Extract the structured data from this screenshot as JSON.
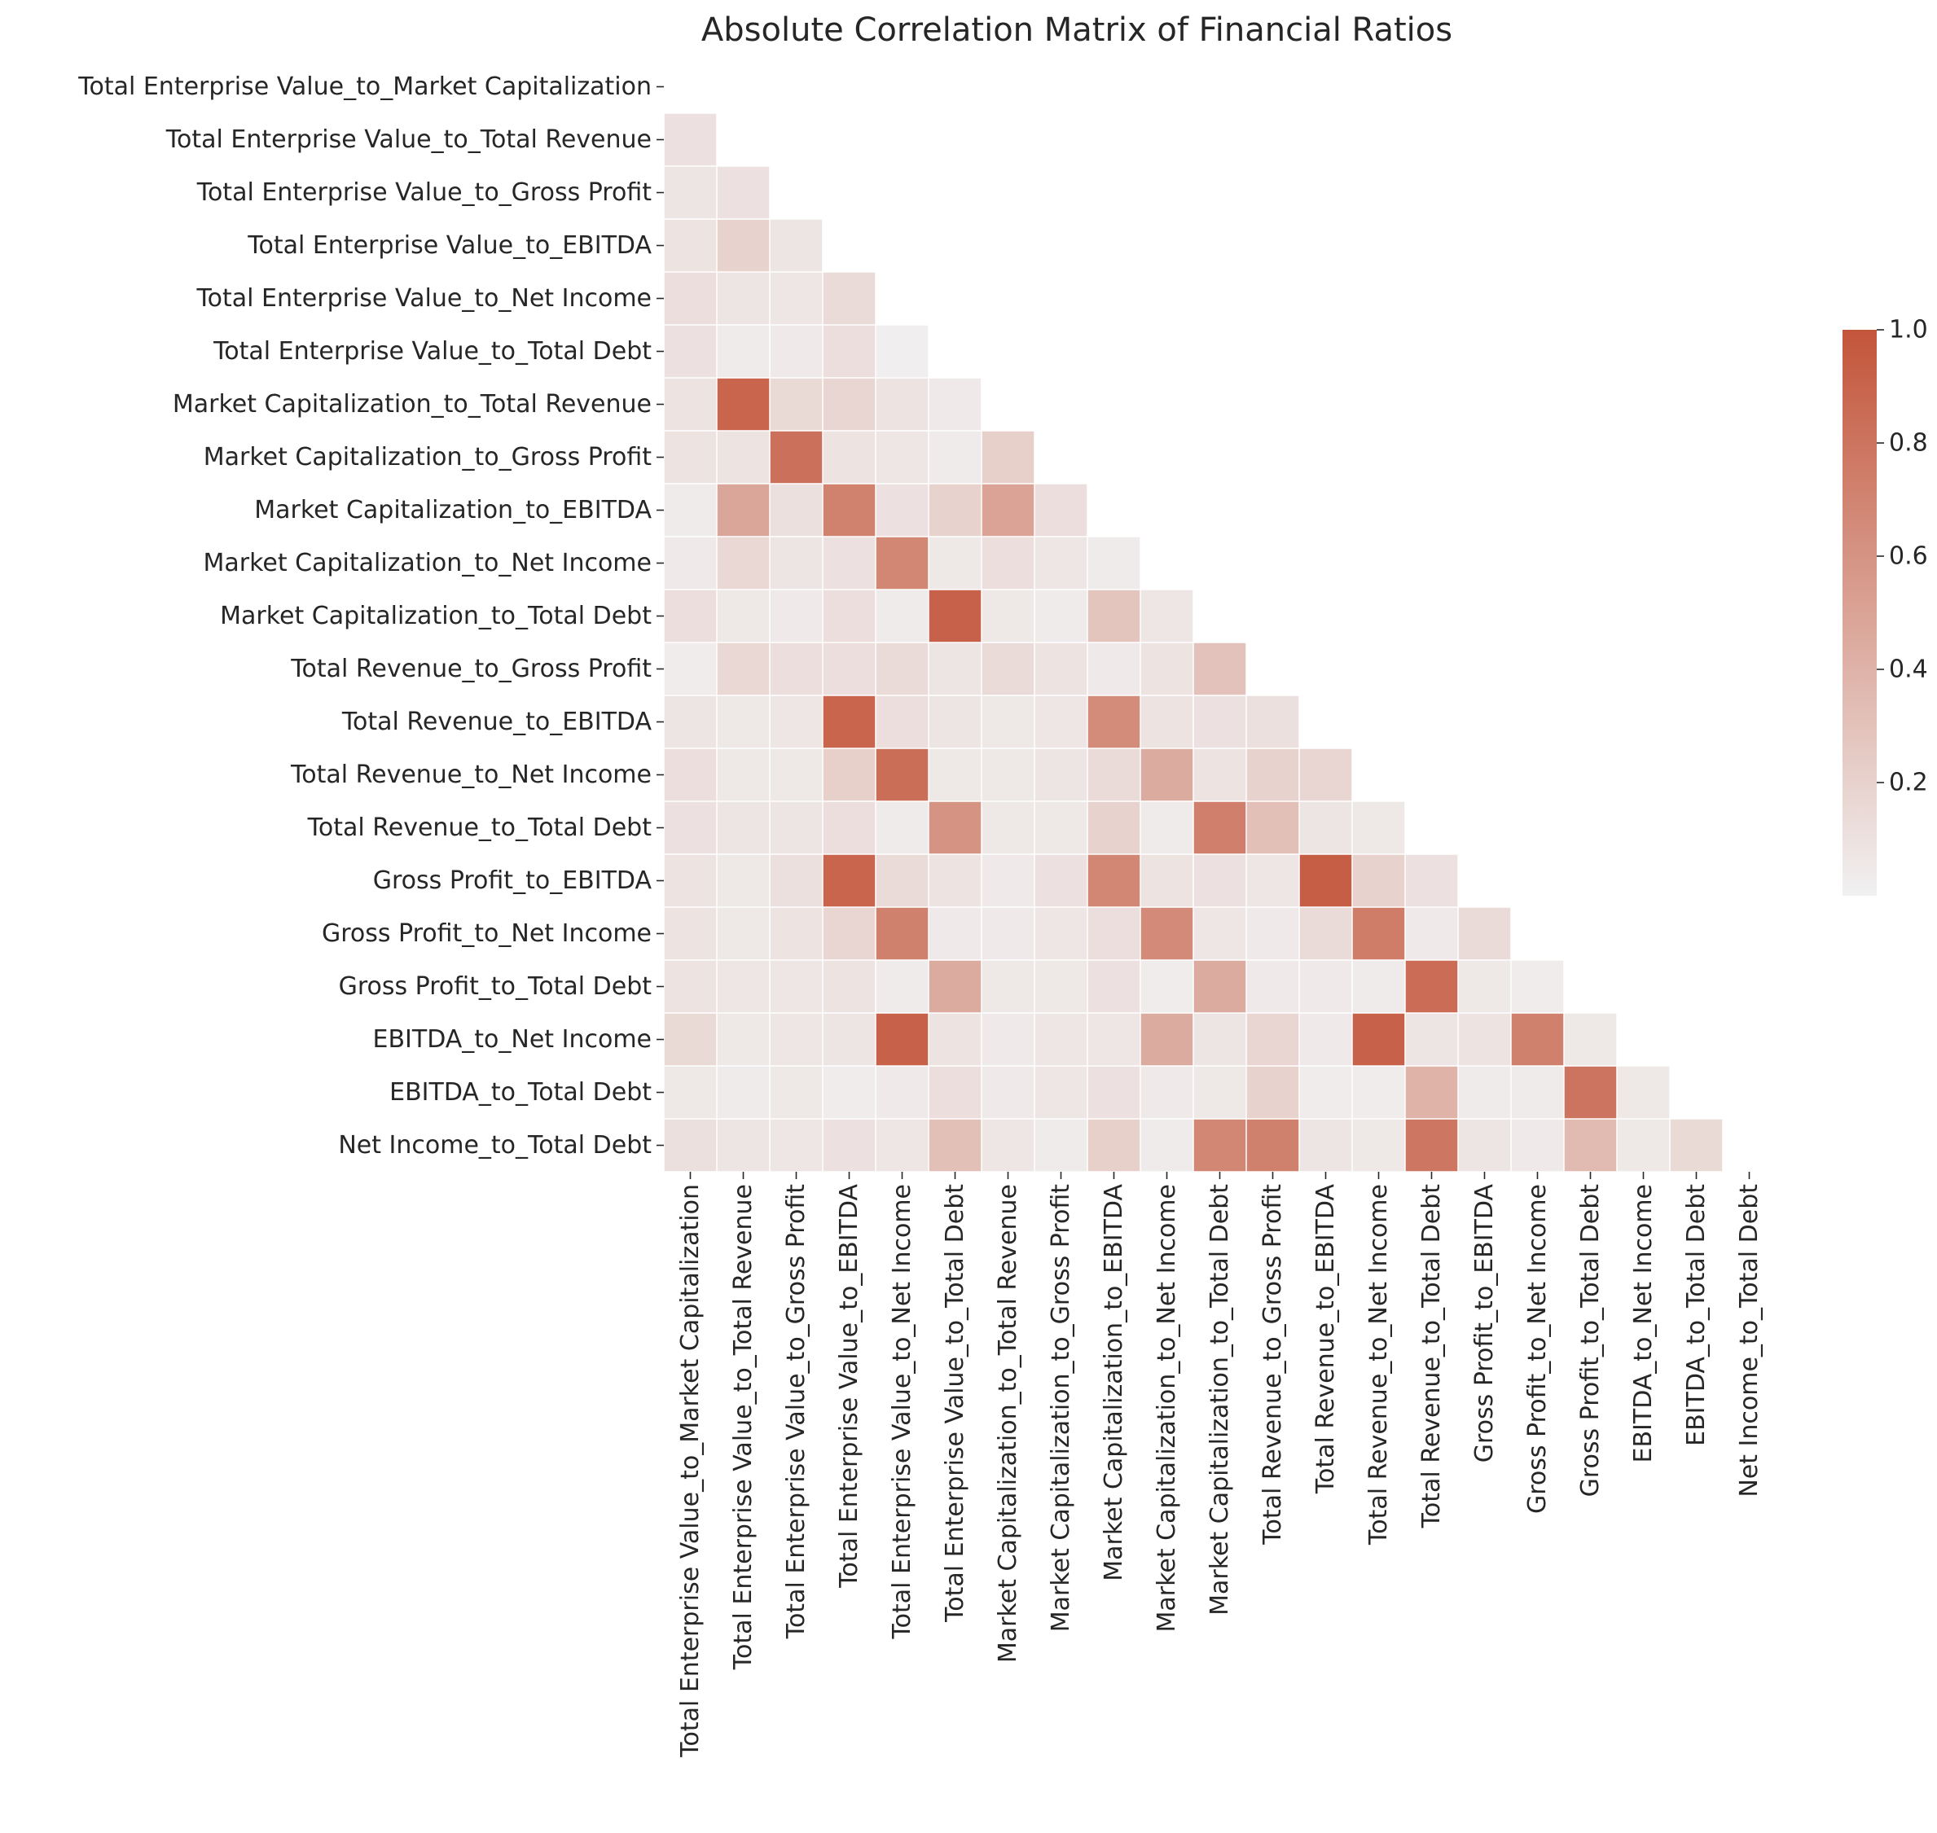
{
  "chart_data": {
    "type": "heatmap",
    "title": "Absolute Correlation Matrix of Financial Ratios",
    "labels": [
      "Total Enterprise Value_to_Market Capitalization",
      "Total Enterprise Value_to_Total Revenue",
      "Total Enterprise Value_to_Gross Profit",
      "Total Enterprise Value_to_EBITDA",
      "Total Enterprise Value_to_Net Income",
      "Total Enterprise Value_to_Total Debt",
      "Market Capitalization_to_Total Revenue",
      "Market Capitalization_to_Gross Profit",
      "Market Capitalization_to_EBITDA",
      "Market Capitalization_to_Net Income",
      "Market Capitalization_to_Total Debt",
      "Total Revenue_to_Gross Profit",
      "Total Revenue_to_EBITDA",
      "Total Revenue_to_Net Income",
      "Total Revenue_to_Total Debt",
      "Gross Profit_to_EBITDA",
      "Gross Profit_to_Net Income",
      "Gross Profit_to_Total Debt",
      "EBITDA_to_Net Income",
      "EBITDA_to_Total Debt",
      "Net Income_to_Total Debt"
    ],
    "mask": "upper triangle including diagonal",
    "lower_triangle_values": [
      [],
      [
        0.1
      ],
      [
        0.08,
        0.1
      ],
      [
        0.09,
        0.2,
        0.08
      ],
      [
        0.12,
        0.08,
        0.07,
        0.14
      ],
      [
        0.1,
        0.04,
        0.05,
        0.12,
        0.02
      ],
      [
        0.09,
        0.9,
        0.15,
        0.18,
        0.09,
        0.05
      ],
      [
        0.09,
        0.09,
        0.82,
        0.09,
        0.07,
        0.04,
        0.22
      ],
      [
        0.04,
        0.48,
        0.11,
        0.71,
        0.1,
        0.2,
        0.5,
        0.12
      ],
      [
        0.05,
        0.16,
        0.08,
        0.1,
        0.68,
        0.06,
        0.12,
        0.07,
        0.04
      ],
      [
        0.12,
        0.06,
        0.05,
        0.12,
        0.04,
        0.92,
        0.06,
        0.04,
        0.28,
        0.07
      ],
      [
        0.03,
        0.16,
        0.12,
        0.12,
        0.14,
        0.08,
        0.14,
        0.09,
        0.05,
        0.09,
        0.3
      ],
      [
        0.08,
        0.06,
        0.07,
        0.9,
        0.12,
        0.08,
        0.06,
        0.07,
        0.65,
        0.09,
        0.1,
        0.11
      ],
      [
        0.12,
        0.06,
        0.06,
        0.22,
        0.84,
        0.06,
        0.06,
        0.08,
        0.14,
        0.45,
        0.09,
        0.2,
        0.18
      ],
      [
        0.1,
        0.08,
        0.08,
        0.12,
        0.04,
        0.6,
        0.06,
        0.06,
        0.2,
        0.04,
        0.73,
        0.32,
        0.08,
        0.06
      ],
      [
        0.09,
        0.06,
        0.11,
        0.9,
        0.14,
        0.09,
        0.05,
        0.1,
        0.68,
        0.09,
        0.1,
        0.07,
        0.94,
        0.2,
        0.1
      ],
      [
        0.09,
        0.06,
        0.09,
        0.18,
        0.72,
        0.05,
        0.05,
        0.07,
        0.12,
        0.66,
        0.07,
        0.05,
        0.14,
        0.75,
        0.05,
        0.14
      ],
      [
        0.09,
        0.07,
        0.07,
        0.09,
        0.04,
        0.45,
        0.06,
        0.06,
        0.1,
        0.03,
        0.45,
        0.05,
        0.05,
        0.04,
        0.85,
        0.06,
        0.03
      ],
      [
        0.15,
        0.06,
        0.07,
        0.08,
        0.92,
        0.09,
        0.05,
        0.07,
        0.07,
        0.45,
        0.08,
        0.18,
        0.05,
        0.92,
        0.08,
        0.09,
        0.72,
        0.06
      ],
      [
        0.06,
        0.04,
        0.06,
        0.03,
        0.05,
        0.12,
        0.05,
        0.07,
        0.1,
        0.05,
        0.06,
        0.2,
        0.03,
        0.03,
        0.4,
        0.04,
        0.04,
        0.8,
        0.06
      ],
      [
        0.11,
        0.08,
        0.07,
        0.1,
        0.07,
        0.32,
        0.07,
        0.04,
        0.22,
        0.04,
        0.68,
        0.72,
        0.08,
        0.06,
        0.78,
        0.08,
        0.05,
        0.35,
        0.06,
        0.15
      ]
    ],
    "colorbar": {
      "range": [
        0.0,
        1.0
      ],
      "ticks": [
        "0.2",
        "0.4",
        "0.6",
        "0.8",
        "1.0"
      ],
      "color_low": "#f1f1f2",
      "color_high": "#c3553a"
    }
  }
}
